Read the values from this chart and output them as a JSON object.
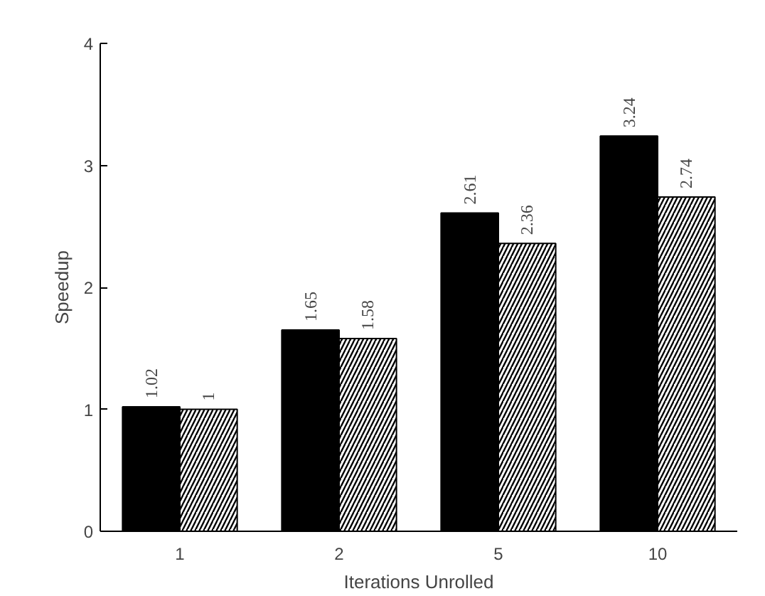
{
  "chart_data": {
    "type": "bar",
    "xlabel": "Iterations Unrolled",
    "ylabel": "Speedup",
    "categories": [
      "1",
      "2",
      "5",
      "10"
    ],
    "series": [
      {
        "color": "#000000",
        "values": [
          1.02,
          1.65,
          2.61,
          3.24
        ]
      },
      {
        "color": "#ffffff",
        "values": [
          1,
          1.58,
          2.36,
          2.74
        ]
      }
    ],
    "ylim": [
      0,
      4
    ],
    "yticks": [
      0,
      1,
      2,
      3,
      4
    ],
    "grid": false,
    "data_labels": true
  }
}
